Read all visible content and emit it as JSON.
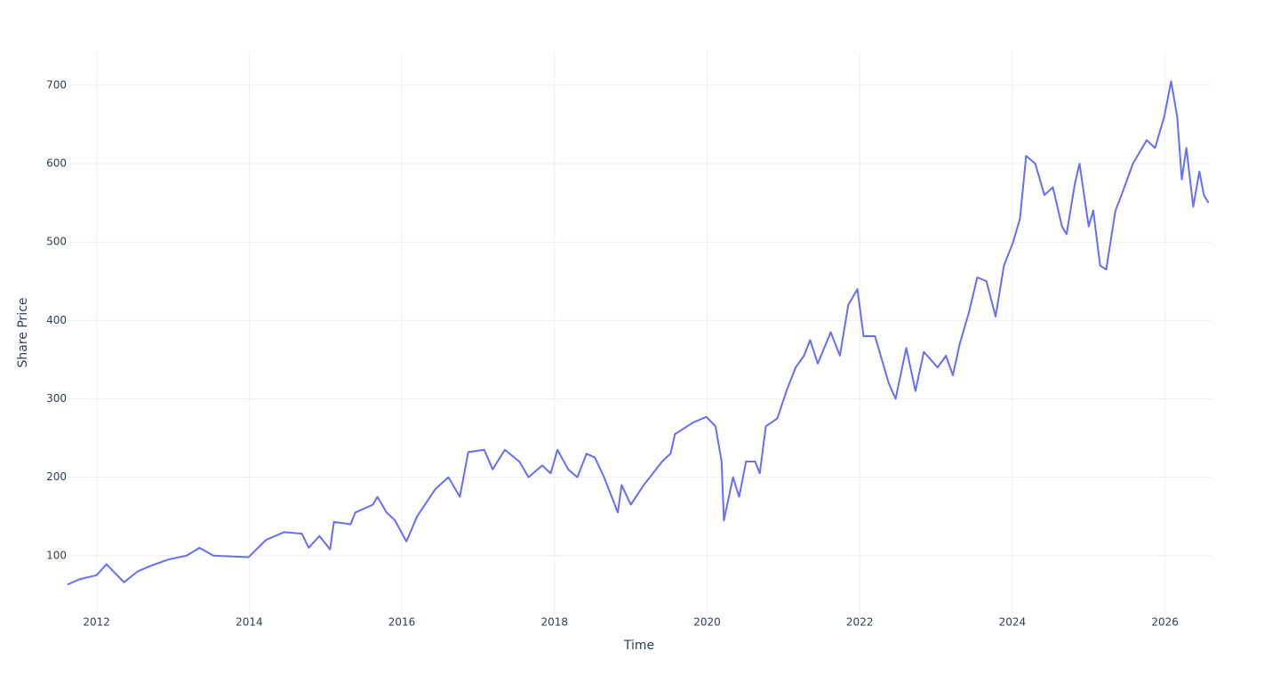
{
  "chart_data": {
    "type": "line",
    "x_label": "Time",
    "y_label": "Share Price",
    "x": [
      2011.62,
      2011.78,
      2012.0,
      2012.13,
      2012.36,
      2012.54,
      2012.71,
      2012.94,
      2013.18,
      2013.35,
      2013.53,
      2013.99,
      2014.22,
      2014.46,
      2014.69,
      2014.78,
      2014.92,
      2015.06,
      2015.11,
      2015.33,
      2015.39,
      2015.62,
      2015.68,
      2015.8,
      2015.91,
      2016.06,
      2016.2,
      2016.44,
      2016.61,
      2016.76,
      2016.87,
      2017.08,
      2017.19,
      2017.35,
      2017.54,
      2017.66,
      2017.84,
      2017.95,
      2018.04,
      2018.18,
      2018.3,
      2018.42,
      2018.53,
      2018.65,
      2018.77,
      2018.83,
      2018.88,
      2019.0,
      2019.17,
      2019.29,
      2019.41,
      2019.52,
      2019.58,
      2019.82,
      2019.99,
      2020.11,
      2020.19,
      2020.22,
      2020.34,
      2020.42,
      2020.51,
      2020.63,
      2020.69,
      2020.77,
      2020.92,
      2021.04,
      2021.16,
      2021.27,
      2021.35,
      2021.45,
      2021.62,
      2021.74,
      2021.85,
      2021.97,
      2022.05,
      2022.2,
      2022.38,
      2022.47,
      2022.61,
      2022.73,
      2022.84,
      2023.02,
      2023.13,
      2023.22,
      2023.31,
      2023.43,
      2023.54,
      2023.66,
      2023.78,
      2023.89,
      2024.01,
      2024.1,
      2024.18,
      2024.3,
      2024.42,
      2024.53,
      2024.65,
      2024.71,
      2024.82,
      2024.88,
      2025.0,
      2025.06,
      2025.15,
      2025.23,
      2025.35,
      2025.43,
      2025.58,
      2025.76,
      2025.87,
      2025.99,
      2026.08,
      2026.16,
      2026.22,
      2026.28,
      2026.37,
      2026.45,
      2026.51,
      2026.57
    ],
    "series": [
      {
        "name": "Share Price",
        "color": "#636efa",
        "values": [
          63,
          70,
          75,
          89,
          66,
          80,
          87,
          95,
          100,
          110,
          100,
          98,
          120,
          130,
          128,
          110,
          125,
          108,
          143,
          140,
          155,
          165,
          175,
          155,
          145,
          118,
          150,
          185,
          200,
          175,
          232,
          235,
          210,
          235,
          220,
          200,
          215,
          205,
          235,
          210,
          200,
          230,
          225,
          200,
          170,
          155,
          190,
          165,
          190,
          205,
          220,
          230,
          255,
          270,
          277,
          265,
          220,
          145,
          200,
          175,
          220,
          220,
          205,
          265,
          275,
          310,
          340,
          355,
          375,
          345,
          385,
          355,
          420,
          440,
          380,
          380,
          320,
          300,
          365,
          310,
          360,
          340,
          355,
          330,
          370,
          410,
          455,
          450,
          405,
          470,
          500,
          530,
          610,
          600,
          560,
          570,
          520,
          510,
          575,
          600,
          520,
          540,
          470,
          465,
          540,
          560,
          600,
          630,
          620,
          660,
          705,
          660,
          580,
          620,
          545,
          590,
          560,
          550
        ]
      }
    ],
    "xlim": [
      2011.62,
      2026.61
    ],
    "ylim": [
      26,
      743
    ],
    "xticks": [
      2012,
      2014,
      2016,
      2018,
      2020,
      2022,
      2024,
      2026
    ],
    "yticks": [
      100,
      200,
      300,
      400,
      500,
      600,
      700
    ],
    "grid": true
  }
}
